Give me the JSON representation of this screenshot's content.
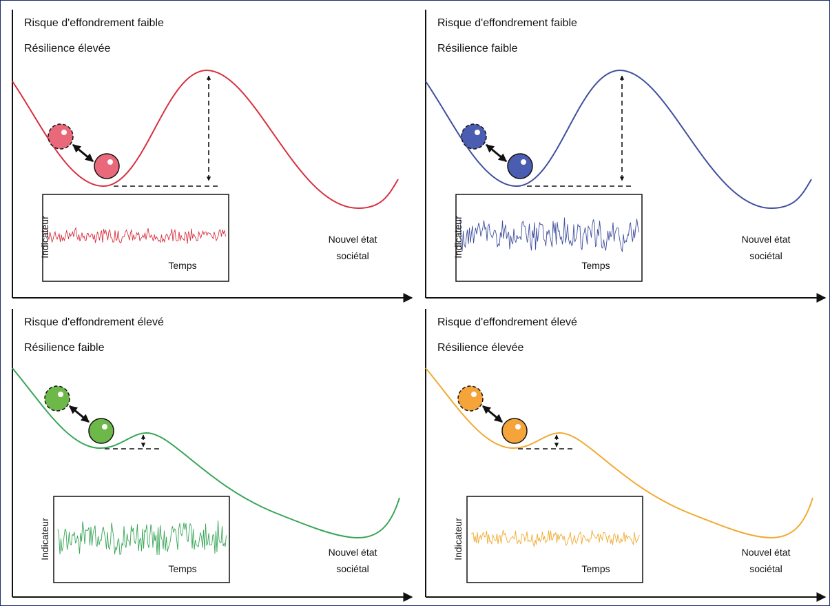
{
  "panels": [
    {
      "title": "Risque d'effondrement faible",
      "subtitle": "Résilience élevée",
      "y_label": "Indicateur",
      "x_label": "Temps",
      "state_line1": "Nouvel état",
      "state_line2": "sociétal"
    },
    {
      "title": "Risque d'effondrement faible",
      "subtitle": "Résilience faible",
      "y_label": "Indicateur",
      "x_label": "Temps",
      "state_line1": "Nouvel état",
      "state_line2": "sociétal"
    },
    {
      "title": "Risque d'effondrement élevé",
      "subtitle": "Résilience faible",
      "y_label": "Indicateur",
      "x_label": "Temps",
      "state_line1": "Nouvel état",
      "state_line2": "sociétal"
    },
    {
      "title": "Risque d'effondrement élevé",
      "subtitle": "Résilience élevée",
      "y_label": "Indicateur",
      "x_label": "Temps",
      "state_line1": "Nouvel état",
      "state_line2": "sociétal"
    }
  ]
}
